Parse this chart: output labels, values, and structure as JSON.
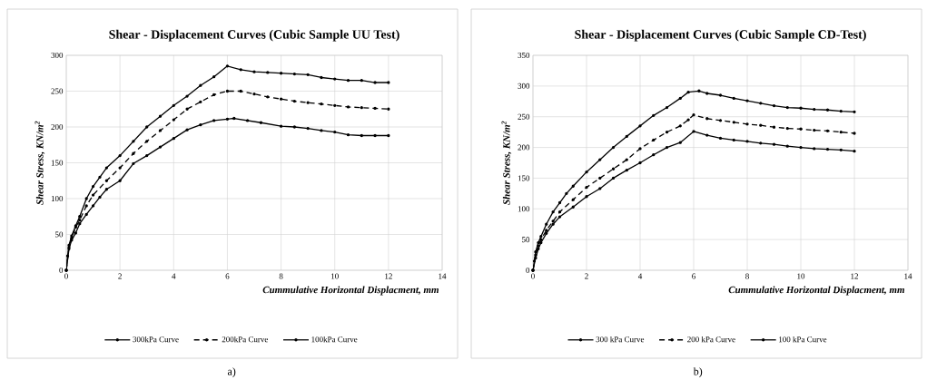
{
  "chart_data": [
    {
      "type": "line",
      "title": "Shear - Displacement Curves (Cubic Sample UU Test)",
      "xlabel": "Cummulative Horizontal Displacment, mm",
      "ylabel": "Shear Stress, KN/m$^{2}$",
      "xlim": [
        0,
        14
      ],
      "xticks": [
        0,
        2,
        4,
        6,
        8,
        10,
        12,
        14
      ],
      "ylim": [
        0,
        300
      ],
      "yticks": [
        0,
        50,
        100,
        150,
        200,
        250,
        300
      ],
      "grid": true,
      "legend": "bottom",
      "marker": "circle",
      "annotations": [
        "a)"
      ],
      "series": [
        {
          "name": "300kPa Curve",
          "color": "#000000",
          "line_style": "solid",
          "x": [
            0,
            0.05,
            0.1,
            0.2,
            0.35,
            0.5,
            0.75,
            1,
            1.25,
            1.5,
            2,
            2.5,
            3,
            3.5,
            4,
            4.5,
            5,
            5.5,
            6,
            6.5,
            7,
            7.5,
            8,
            8.5,
            9,
            9.5,
            10,
            10.5,
            11,
            11.5,
            12
          ],
          "values": [
            0,
            20,
            35,
            48,
            62,
            75,
            100,
            117,
            130,
            143,
            160,
            180,
            200,
            215,
            230,
            243,
            258,
            270,
            285,
            280,
            277,
            276,
            275,
            274,
            273,
            269,
            267,
            265,
            265,
            262,
            262
          ]
        },
        {
          "name": "200kPa Curve",
          "color": "#000000",
          "line_style": "dashed",
          "x": [
            0,
            0.1,
            0.2,
            0.35,
            0.5,
            0.75,
            1,
            1.5,
            2,
            2.5,
            3,
            3.5,
            4,
            4.5,
            5,
            5.5,
            6,
            6.5,
            7,
            7.5,
            8,
            8.5,
            9,
            9.5,
            10,
            10.5,
            11,
            11.5,
            12
          ],
          "values": [
            0,
            32,
            45,
            60,
            70,
            90,
            105,
            125,
            143,
            163,
            180,
            195,
            210,
            225,
            235,
            245,
            250,
            250,
            246,
            242,
            239,
            236,
            234,
            232,
            230,
            228,
            227,
            226,
            225
          ]
        },
        {
          "name": "100kPa Curve",
          "color": "#000000",
          "line_style": "solid",
          "x": [
            0,
            0.1,
            0.2,
            0.35,
            0.5,
            0.75,
            1,
            1.25,
            1.5,
            2,
            2.5,
            3,
            3.5,
            4,
            4.5,
            5,
            5.5,
            6,
            6.25,
            6.75,
            7.25,
            8,
            8.5,
            9,
            9.5,
            10,
            10.5,
            11,
            11.5,
            12
          ],
          "values": [
            0,
            30,
            42,
            52,
            65,
            78,
            90,
            102,
            113,
            125,
            149,
            160,
            172,
            184,
            196,
            203,
            209,
            211,
            212,
            209,
            206,
            201,
            200,
            198,
            195,
            193,
            189,
            188,
            188,
            188
          ]
        }
      ]
    },
    {
      "type": "line",
      "title": "Shear - Displacement Curves (Cubic Sample CD-Test)",
      "xlabel": "Cummulative Horizontal Displacment, mm",
      "ylabel": "Shear Stress, KN/m$^{2}$",
      "xlim": [
        0,
        14
      ],
      "xticks": [
        0,
        2,
        4,
        6,
        8,
        10,
        12,
        14
      ],
      "ylim": [
        0,
        350
      ],
      "yticks": [
        0,
        50,
        100,
        150,
        200,
        250,
        300,
        350
      ],
      "grid": true,
      "legend": "bottom",
      "marker": "circle",
      "annotations": [
        "b)"
      ],
      "series": [
        {
          "name": "300 kPa Curve",
          "color": "#000000",
          "line_style": "solid",
          "x": [
            0,
            0.05,
            0.1,
            0.2,
            0.3,
            0.5,
            0.75,
            1,
            1.25,
            1.5,
            2,
            2.5,
            3,
            3.5,
            4,
            4.5,
            5,
            5.5,
            5.8,
            6.2,
            6.5,
            7,
            7.5,
            8,
            8.5,
            9,
            9.5,
            10,
            10.5,
            11,
            11.5,
            12
          ],
          "values": [
            0,
            15,
            30,
            45,
            55,
            75,
            95,
            110,
            125,
            137,
            160,
            180,
            200,
            218,
            235,
            252,
            265,
            280,
            290,
            292,
            288,
            285,
            280,
            276,
            272,
            268,
            265,
            264,
            262,
            261,
            259,
            258
          ]
        },
        {
          "name": "200 kPa Curve",
          "color": "#000000",
          "line_style": "dashed",
          "x": [
            0,
            0.1,
            0.2,
            0.3,
            0.5,
            0.75,
            1,
            1.5,
            2,
            2.5,
            3,
            3.5,
            4,
            4.5,
            5,
            5.5,
            5.8,
            6,
            6.5,
            7,
            7.5,
            8,
            8.5,
            9,
            9.5,
            10,
            10.5,
            11,
            11.5,
            12
          ],
          "values": [
            0,
            25,
            40,
            50,
            65,
            80,
            95,
            115,
            135,
            150,
            165,
            180,
            198,
            212,
            225,
            235,
            245,
            253,
            247,
            244,
            241,
            238,
            236,
            233,
            231,
            230,
            228,
            227,
            225,
            223
          ]
        },
        {
          "name": "100 kPa Curve",
          "color": "#000000",
          "line_style": "solid",
          "x": [
            0,
            0.1,
            0.2,
            0.3,
            0.5,
            0.75,
            1,
            1.5,
            2,
            2.5,
            3,
            3.5,
            4,
            4.5,
            5,
            5.5,
            6,
            6.5,
            7,
            7.5,
            8,
            8.5,
            9,
            9.5,
            10,
            10.5,
            11,
            11.5,
            12
          ],
          "values": [
            0,
            20,
            35,
            45,
            60,
            75,
            87,
            103,
            120,
            133,
            150,
            163,
            175,
            188,
            200,
            208,
            226,
            220,
            215,
            212,
            210,
            207,
            205,
            202,
            200,
            198,
            197,
            196,
            194
          ]
        }
      ]
    }
  ]
}
